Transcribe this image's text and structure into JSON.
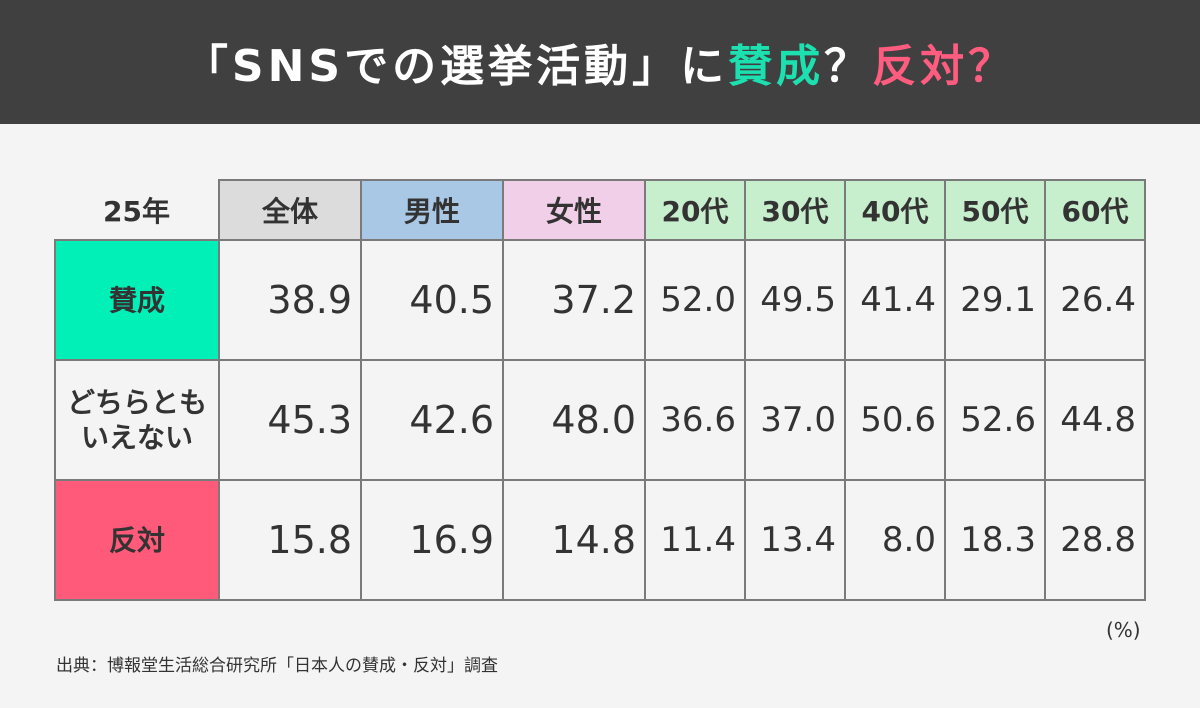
{
  "header": {
    "title_pre": "「SNSでの選挙活動」に",
    "title_agree": "賛成",
    "title_q1": "？",
    "title_oppose": "反対",
    "title_q2": "？"
  },
  "colors": {
    "header_bg": "#404040",
    "agree": "#00f0b8",
    "oppose": "#ff5a7a",
    "total": "#dcdcdc",
    "male": "#a9c8e6",
    "female": "#f1cfe8",
    "age": "#c8efcd"
  },
  "chart_data": {
    "type": "table",
    "title": "「SNSでの選挙活動」に賛成？反対？",
    "year_label": "25年",
    "columns": [
      "全体",
      "男性",
      "女性",
      "20代",
      "30代",
      "40代",
      "50代",
      "60代"
    ],
    "rows": [
      {
        "label_lines": [
          "賛成"
        ],
        "values": [
          "38.9",
          "40.5",
          "37.2",
          "52.0",
          "49.5",
          "41.4",
          "29.1",
          "26.4"
        ]
      },
      {
        "label_lines": [
          "どちらとも",
          "いえない"
        ],
        "values": [
          "45.3",
          "42.6",
          "48.0",
          "36.6",
          "37.0",
          "50.6",
          "52.6",
          "44.8"
        ]
      },
      {
        "label_lines": [
          "反対"
        ],
        "values": [
          "15.8",
          "16.9",
          "14.8",
          "11.4",
          "13.4",
          "8.0",
          "18.3",
          "28.8"
        ]
      }
    ],
    "unit": "(%)"
  },
  "footer": {
    "source": "出典：博報堂生活総合研究所「日本人の賛成・反対」調査"
  }
}
